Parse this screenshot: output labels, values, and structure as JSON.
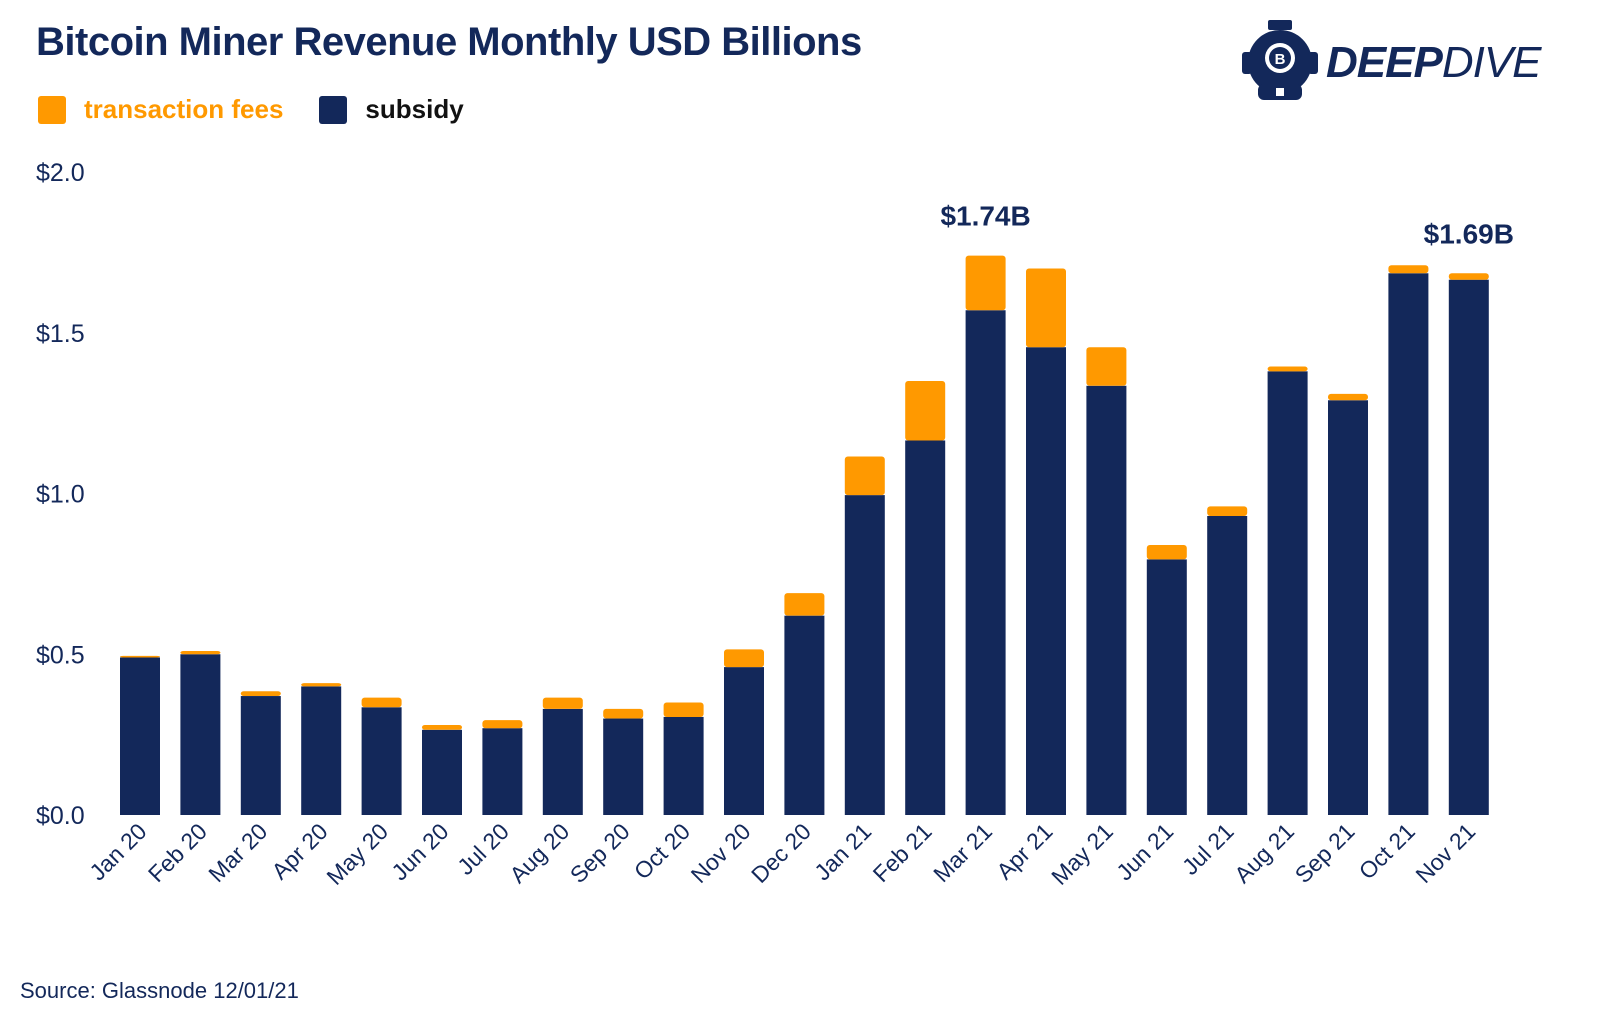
{
  "header": {
    "title": "Bitcoin Miner Revenue Monthly USD Billions",
    "logo": {
      "text_bold": "DEEP",
      "text_light": "DIVE",
      "icon": "diving-helmet-bitcoin-icon"
    }
  },
  "legend": [
    {
      "label": "transaction fees",
      "color": "#ff9900"
    },
    {
      "label": "subsidy",
      "color": "#13285a"
    }
  ],
  "colors": {
    "fees": "#ff9900",
    "subsidy": "#13285a",
    "text": "#13285a"
  },
  "source": "Source: Glassnode 12/01/21",
  "chart_data": {
    "type": "bar",
    "stacked": true,
    "title": "Bitcoin Miner Revenue Monthly USD Billions",
    "xlabel": "",
    "ylabel": "",
    "ylim": [
      0,
      2.0
    ],
    "yticks": [
      "$0.0",
      "$0.5",
      "$1.0",
      "$1.5",
      "$2.0"
    ],
    "ytick_values": [
      0,
      0.5,
      1.0,
      1.5,
      2.0
    ],
    "categories": [
      "Jan 20",
      "Feb 20",
      "Mar 20",
      "Apr 20",
      "May 20",
      "Jun 20",
      "Jul 20",
      "Aug 20",
      "Sep 20",
      "Oct 20",
      "Nov 20",
      "Dec 20",
      "Jan 21",
      "Feb 21",
      "Mar 21",
      "Apr 21",
      "May 21",
      "Jun 21",
      "Jul 21",
      "Aug 21",
      "Sep 21",
      "Oct 21",
      "Nov 21"
    ],
    "series": [
      {
        "name": "subsidy",
        "color": "#13285a",
        "values": [
          0.49,
          0.5,
          0.37,
          0.4,
          0.335,
          0.265,
          0.27,
          0.33,
          0.3,
          0.305,
          0.46,
          0.62,
          0.995,
          1.165,
          1.57,
          1.455,
          1.335,
          0.795,
          0.93,
          1.38,
          1.29,
          1.685,
          1.665
        ]
      },
      {
        "name": "transaction fees",
        "color": "#ff9900",
        "values": [
          0.005,
          0.01,
          0.015,
          0.01,
          0.03,
          0.015,
          0.025,
          0.035,
          0.03,
          0.045,
          0.055,
          0.07,
          0.12,
          0.185,
          0.17,
          0.245,
          0.12,
          0.045,
          0.03,
          0.015,
          0.02,
          0.025,
          0.02
        ]
      }
    ],
    "annotations": [
      {
        "category": "Mar 21",
        "text": "$1.74B"
      },
      {
        "category": "Nov 21",
        "text": "$1.69B"
      }
    ],
    "grid": false,
    "legend_position": "top-left"
  }
}
